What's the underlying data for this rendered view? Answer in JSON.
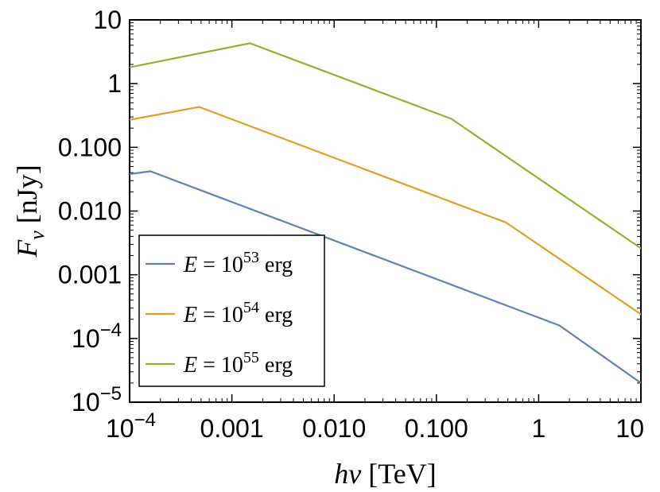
{
  "chart_data": {
    "type": "line",
    "x_scale": "log",
    "y_scale": "log",
    "xlim": [
      0.0001,
      10
    ],
    "ylim": [
      1e-05,
      10
    ],
    "grid": false,
    "legend_position": "bottom-left",
    "xlabel": {
      "var": "hν",
      "unit": "[TeV]"
    },
    "ylabel": {
      "var": "F",
      "sub": "ν",
      "unit": "[nJy]"
    },
    "x_ticks": [
      {
        "value": 0.0001,
        "base": "10",
        "exp": "−4"
      },
      {
        "value": 0.001,
        "label": "0.001"
      },
      {
        "value": 0.01,
        "label": "0.010"
      },
      {
        "value": 0.1,
        "label": "0.100"
      },
      {
        "value": 1,
        "label": "1"
      },
      {
        "value": 10,
        "label": "10"
      }
    ],
    "y_ticks": [
      {
        "value": 1e-05,
        "base": "10",
        "exp": "−5"
      },
      {
        "value": 0.0001,
        "base": "10",
        "exp": "−4"
      },
      {
        "value": 0.001,
        "label": "0.001"
      },
      {
        "value": 0.01,
        "label": "0.010"
      },
      {
        "value": 0.1,
        "label": "0.100"
      },
      {
        "value": 1,
        "label": "1"
      },
      {
        "value": 10,
        "label": "10"
      }
    ],
    "series": [
      {
        "name": "E = 10^53 erg",
        "legend": {
          "var": "E",
          "eq": " = 10",
          "exp": "53",
          "unit": " erg"
        },
        "color": "#5e81b5",
        "x": [
          0.0001,
          0.00016,
          1.6,
          10
        ],
        "y": [
          0.038,
          0.042,
          0.00016,
          2e-05
        ]
      },
      {
        "name": "E = 10^54 erg",
        "legend": {
          "var": "E",
          "eq": " = 10",
          "exp": "54",
          "unit": " erg"
        },
        "color": "#e19c24",
        "x": [
          0.0001,
          0.00048,
          0.48,
          10
        ],
        "y": [
          0.27,
          0.43,
          0.0066,
          0.00024
        ]
      },
      {
        "name": "E = 10^55 erg",
        "legend": {
          "var": "E",
          "eq": " = 10",
          "exp": "55",
          "unit": " erg"
        },
        "color": "#8fb032",
        "x": [
          0.0001,
          0.0015,
          0.14,
          10
        ],
        "y": [
          1.8,
          4.3,
          0.28,
          0.0026
        ]
      }
    ]
  }
}
